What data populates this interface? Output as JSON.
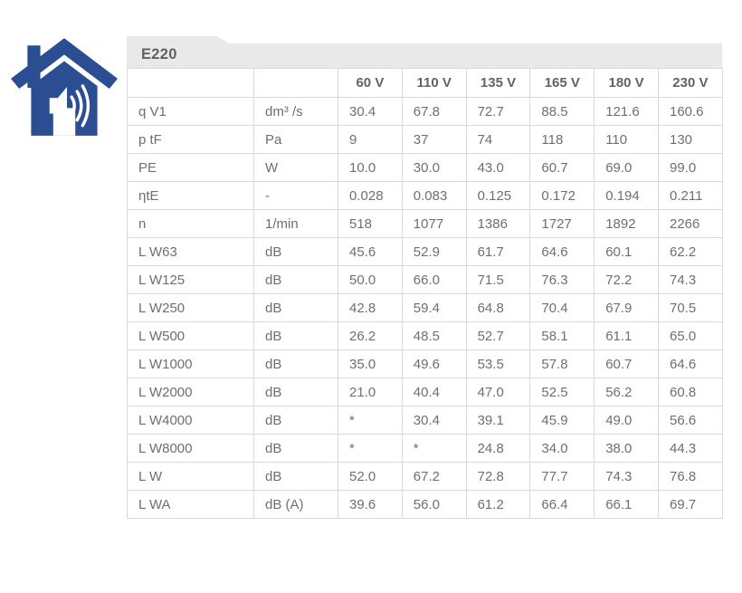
{
  "panel": {
    "title": "E220"
  },
  "icon": {
    "name": "house-sound-icon",
    "color": "#2b4d92"
  },
  "colors": {
    "header_bg": "#e9e9e9",
    "table_border": "#d9d9d9",
    "text": "#6f6f6f"
  },
  "table": {
    "column_headers": [
      "",
      "",
      "60 V",
      "110 V",
      "135 V",
      "165 V",
      "180 V",
      "230 V"
    ],
    "rows": [
      {
        "param": "q V1",
        "unit": "dm³ /s",
        "values": [
          "30.4",
          "67.8",
          "72.7",
          "88.5",
          "121.6",
          "160.6"
        ]
      },
      {
        "param": "p tF",
        "unit": "Pa",
        "values": [
          "9",
          "37",
          "74",
          "118",
          "110",
          "130"
        ]
      },
      {
        "param": "PE",
        "unit": "W",
        "values": [
          "10.0",
          "30.0",
          "43.0",
          "60.7",
          "69.0",
          "99.0"
        ]
      },
      {
        "param": "ηtE",
        "unit": "-",
        "values": [
          "0.028",
          "0.083",
          "0.125",
          "0.172",
          "0.194",
          "0.211"
        ]
      },
      {
        "param": "n",
        "unit": "1/min",
        "values": [
          "518",
          "1077",
          "1386",
          "1727",
          "1892",
          "2266"
        ]
      },
      {
        "param": "L W63",
        "unit": "dB",
        "values": [
          "45.6",
          "52.9",
          "61.7",
          "64.6",
          "60.1",
          "62.2"
        ]
      },
      {
        "param": "L W125",
        "unit": "dB",
        "values": [
          "50.0",
          "66.0",
          "71.5",
          "76.3",
          "72.2",
          "74.3"
        ]
      },
      {
        "param": "L W250",
        "unit": "dB",
        "values": [
          "42.8",
          "59.4",
          "64.8",
          "70.4",
          "67.9",
          "70.5"
        ]
      },
      {
        "param": "L W500",
        "unit": "dB",
        "values": [
          "26.2",
          "48.5",
          "52.7",
          "58.1",
          "61.1",
          "65.0"
        ]
      },
      {
        "param": "L W1000",
        "unit": "dB",
        "values": [
          "35.0",
          "49.6",
          "53.5",
          "57.8",
          "60.7",
          "64.6"
        ]
      },
      {
        "param": "L W2000",
        "unit": "dB",
        "values": [
          "21.0",
          "40.4",
          "47.0",
          "52.5",
          "56.2",
          "60.8"
        ]
      },
      {
        "param": "L W4000",
        "unit": "dB",
        "values": [
          "*",
          "30.4",
          "39.1",
          "45.9",
          "49.0",
          "56.6"
        ]
      },
      {
        "param": "L W8000",
        "unit": "dB",
        "values": [
          "*",
          "*",
          "24.8",
          "34.0",
          "38.0",
          "44.3"
        ]
      },
      {
        "param": "L W",
        "unit": "dB",
        "values": [
          "52.0",
          "67.2",
          "72.8",
          "77.7",
          "74.3",
          "76.8"
        ]
      },
      {
        "param": "L WA",
        "unit": "dB (A)",
        "values": [
          "39.6",
          "56.0",
          "61.2",
          "66.4",
          "66.1",
          "69.7"
        ]
      }
    ]
  }
}
